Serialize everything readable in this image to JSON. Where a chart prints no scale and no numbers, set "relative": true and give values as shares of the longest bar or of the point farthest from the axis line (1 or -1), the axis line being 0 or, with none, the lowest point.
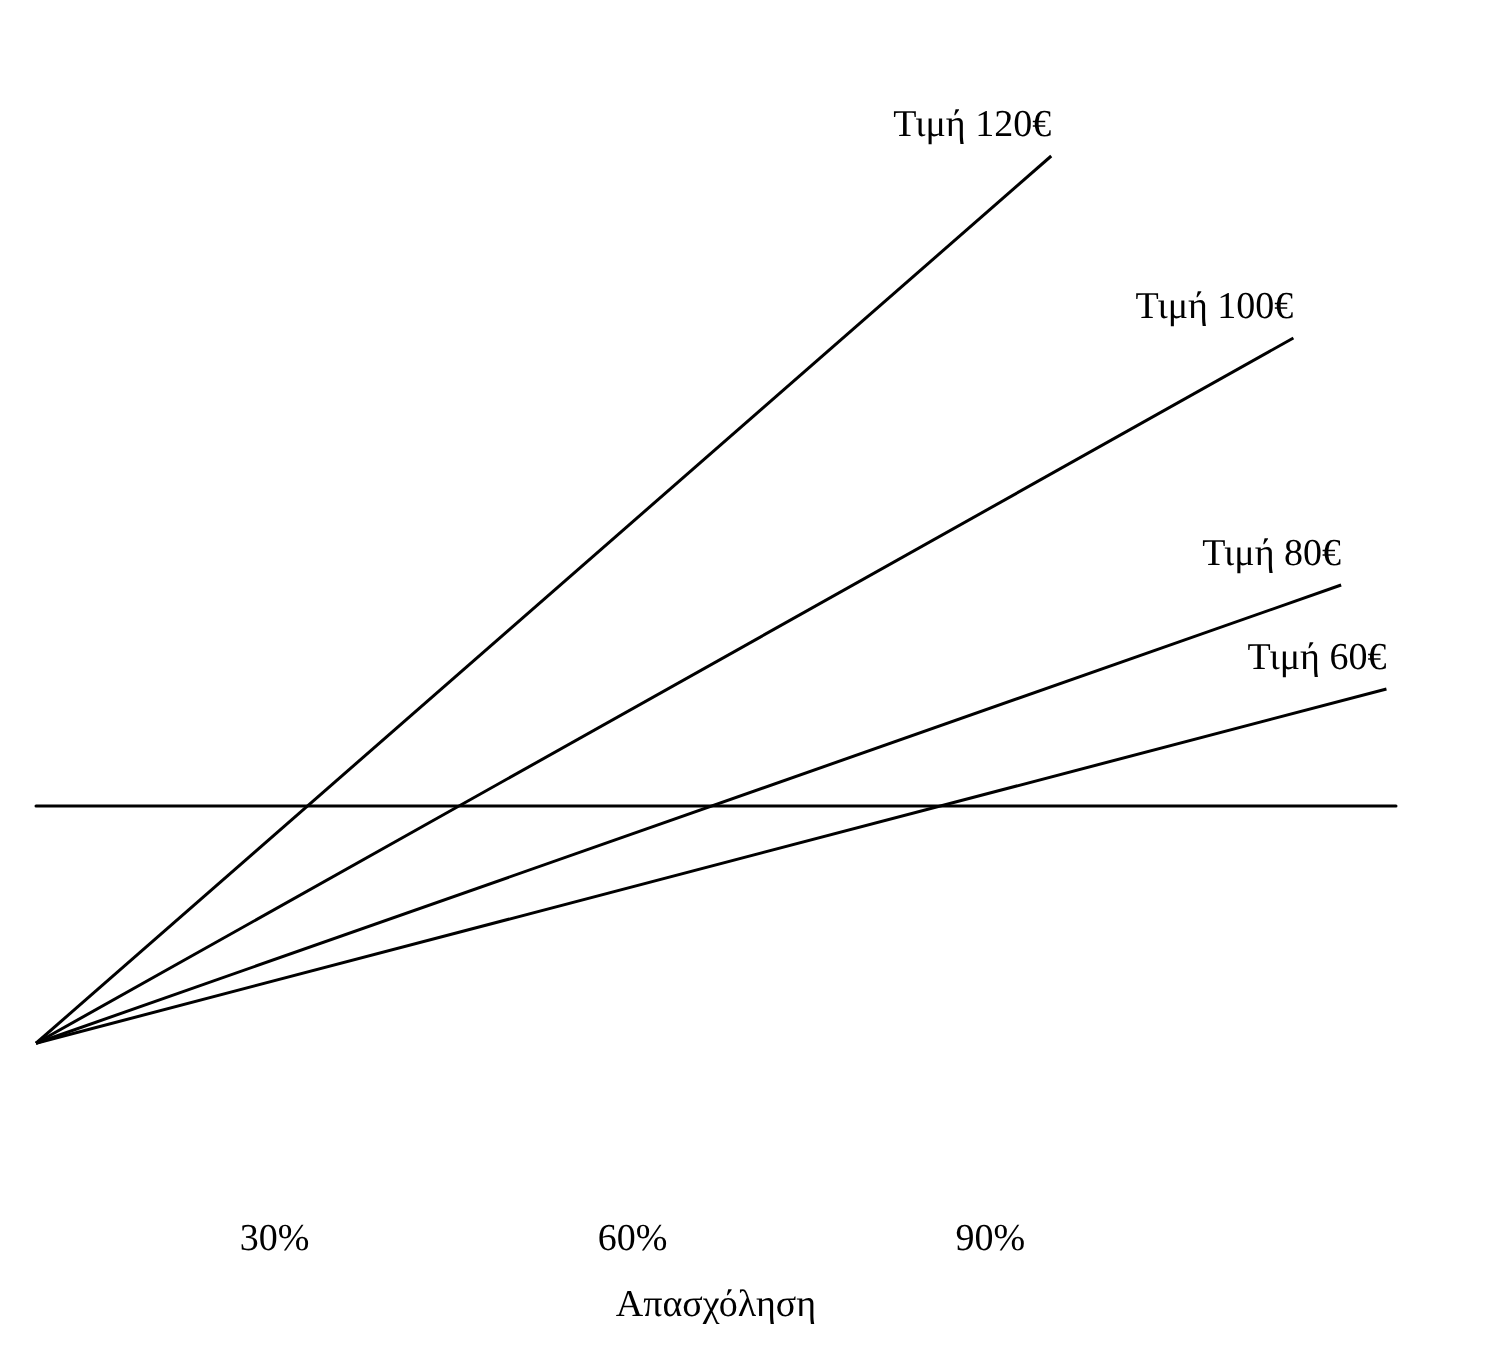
{
  "chart_data": {
    "type": "line",
    "relative": true,
    "xlabel": "Απασχόληση",
    "xlim": [
      10,
      124
    ],
    "xticks": [
      {
        "value": 30,
        "label": "30%"
      },
      {
        "value": 60,
        "label": "60%"
      },
      {
        "value": 90,
        "label": "90%"
      }
    ],
    "grid": false,
    "legend": false,
    "marker": "none",
    "line_style": "solid",
    "series": [
      {
        "name": "Τιμή 120€",
        "color": "#000000",
        "x": [
          10,
          95.1
        ],
        "values": [
          -0.365,
          1.0
        ]
      },
      {
        "name": "Τιμή 100€",
        "color": "#000000",
        "x": [
          10,
          115.4
        ],
        "values": [
          -0.365,
          0.72
        ]
      },
      {
        "name": "Τιμή 80€",
        "color": "#000000",
        "x": [
          10,
          119.4
        ],
        "values": [
          -0.365,
          0.34
        ]
      },
      {
        "name": "Τιμή 60€",
        "color": "#000000",
        "x": [
          10,
          123.2
        ],
        "values": [
          -0.365,
          0.18
        ]
      }
    ]
  }
}
